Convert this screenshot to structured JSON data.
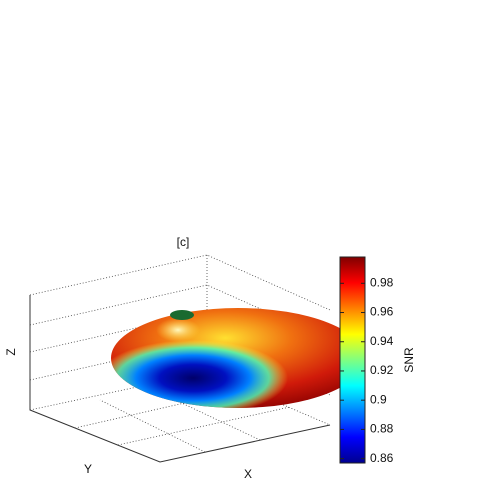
{
  "chart_data": {
    "type": "surface",
    "title": "[c]",
    "xlabel": "X",
    "ylabel": "Y",
    "zlabel": "Z",
    "colorbar": {
      "label": "SNR",
      "clim": [
        0.857,
        0.998
      ],
      "ticks": [
        0.86,
        0.88,
        0.9,
        0.92,
        0.94,
        0.96,
        0.98
      ],
      "colormap": [
        "#00008f",
        "#0000ff",
        "#0080ff",
        "#00ffff",
        "#80ff80",
        "#ffff00",
        "#ff8000",
        "#ff0000",
        "#800000"
      ]
    }
  }
}
